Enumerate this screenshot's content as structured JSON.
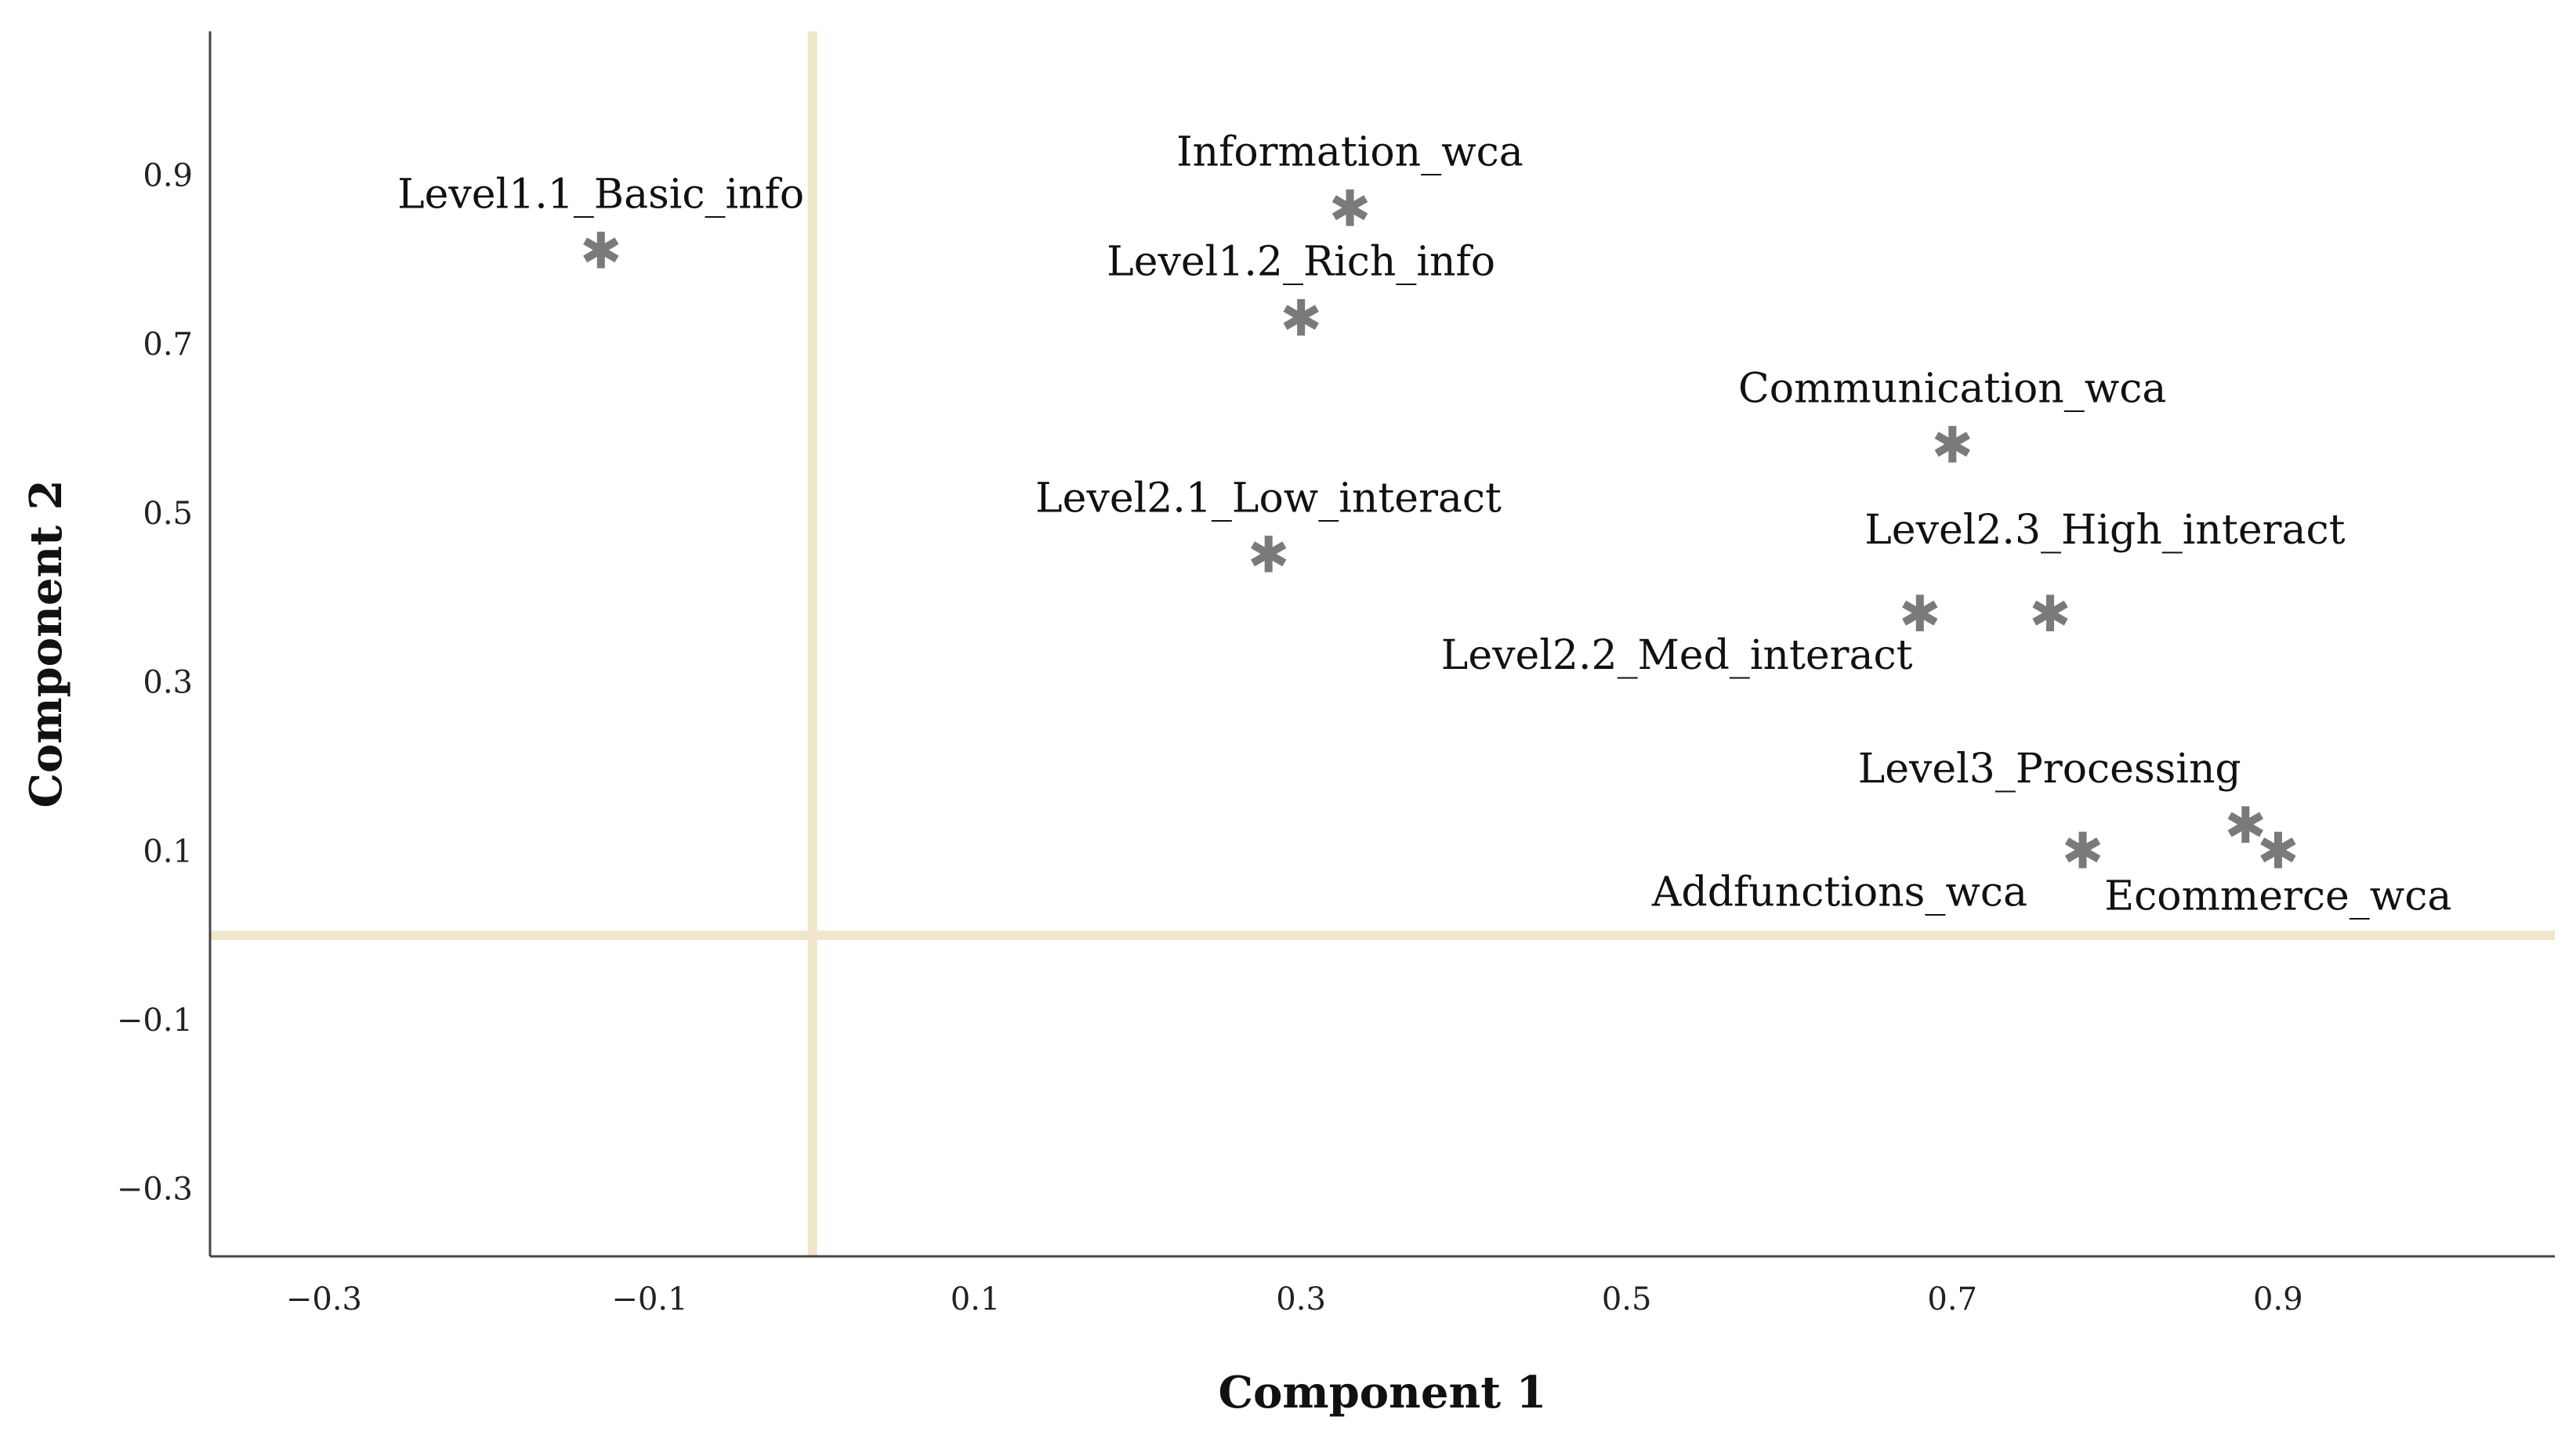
{
  "chart_data": {
    "type": "scatter",
    "title": "",
    "xlabel": "Component 1",
    "ylabel": "Component 2",
    "xlim": [
      -0.37,
      1.07
    ],
    "ylim": [
      -0.38,
      1.07
    ],
    "xticks": [
      -0.3,
      -0.1,
      0.1,
      0.3,
      0.5,
      0.7,
      0.9
    ],
    "yticks": [
      -0.3,
      -0.1,
      0.1,
      0.3,
      0.5,
      0.7,
      0.9
    ],
    "xtick_labels": [
      "−0.3",
      "−0.1",
      "0.1",
      "0.3",
      "0.5",
      "0.7",
      "0.9"
    ],
    "ytick_labels": [
      "−0.3",
      "−0.1",
      "0.1",
      "0.3",
      "0.5",
      "0.7",
      "0.9"
    ],
    "reference_lines": {
      "x": 0.0,
      "y": 0.0
    },
    "points": [
      {
        "label": "Level1.1_Basic_info",
        "x": -0.13,
        "y": 0.81,
        "label_pos": "above"
      },
      {
        "label": "Information_wca",
        "x": 0.33,
        "y": 0.86,
        "label_pos": "above"
      },
      {
        "label": "Level1.2_Rich_info",
        "x": 0.3,
        "y": 0.73,
        "label_pos": "above"
      },
      {
        "label": "Communication_wca",
        "x": 0.7,
        "y": 0.58,
        "label_pos": "above"
      },
      {
        "label": "Level2.1_Low_interact",
        "x": 0.28,
        "y": 0.45,
        "label_pos": "above"
      },
      {
        "label": "Level2.3_High_interact",
        "x": 0.76,
        "y": 0.38,
        "label_pos": "above-right"
      },
      {
        "label": "Level2.2_Med_interact",
        "x": 0.68,
        "y": 0.38,
        "label_pos": "below-left"
      },
      {
        "label": "Level3_Processing",
        "x": 0.88,
        "y": 0.13,
        "label_pos": "above-left"
      },
      {
        "label": "Addfunctions_wca",
        "x": 0.78,
        "y": 0.1,
        "label_pos": "below-left"
      },
      {
        "label": "Ecommerce_wca",
        "x": 0.9,
        "y": 0.1,
        "label_pos": "below"
      }
    ],
    "legend": "none"
  },
  "colors": {
    "marker": "#7a7a7a",
    "reference_line": "#efe6cc",
    "axis": "#444444"
  },
  "marker_glyph": "✱"
}
